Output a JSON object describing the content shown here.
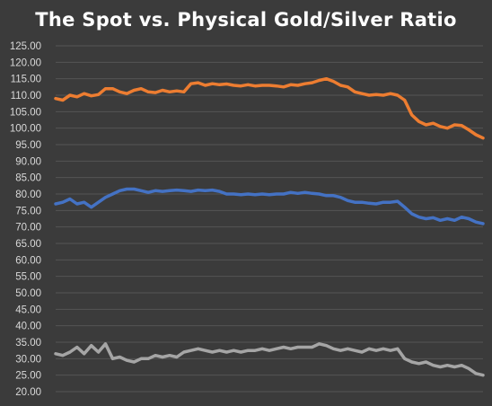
{
  "chart_data": {
    "type": "line",
    "title": "The Spot vs. Physical Gold/Silver Ratio",
    "xlabel": "",
    "ylabel": "",
    "ylim": [
      20,
      125
    ],
    "y_ticks": [
      "20.00",
      "25.00",
      "30.00",
      "35.00",
      "40.00",
      "45.00",
      "50.00",
      "55.00",
      "60.00",
      "65.00",
      "70.00",
      "75.00",
      "80.00",
      "85.00",
      "90.00",
      "95.00",
      "100.00",
      "105.00",
      "110.00",
      "115.00",
      "120.00",
      "125.00"
    ],
    "y_tick_values": [
      20,
      25,
      30,
      35,
      40,
      45,
      50,
      55,
      60,
      65,
      70,
      75,
      80,
      85,
      90,
      95,
      100,
      105,
      110,
      115,
      120,
      125
    ],
    "grid": true,
    "legend": "none",
    "x": [
      0,
      3,
      6,
      9,
      12,
      15,
      18,
      21,
      24,
      27,
      30,
      33,
      36,
      39,
      42,
      45,
      48,
      51,
      54,
      57,
      60,
      63,
      66,
      69,
      72,
      75,
      78,
      81,
      84,
      87,
      90,
      93,
      96,
      99,
      102,
      105,
      108,
      111,
      114,
      117,
      120,
      123,
      126,
      129,
      132,
      135,
      138,
      141,
      144,
      147,
      150,
      153,
      156,
      159,
      162,
      165,
      168,
      171,
      174,
      177,
      180
    ],
    "series": [
      {
        "color": "#ed7d31",
        "values": [
          109,
          108.5,
          110,
          109.5,
          110.5,
          109.8,
          110.2,
          112,
          112,
          111,
          110.5,
          111.5,
          112,
          111,
          110.8,
          111.5,
          111,
          111.3,
          111,
          113.5,
          113.8,
          113,
          113.5,
          113.2,
          113.4,
          113,
          112.8,
          113.2,
          112.8,
          113,
          113,
          112.8,
          112.5,
          113.2,
          113,
          113.5,
          113.8,
          114.5,
          115,
          114.2,
          113,
          112.5,
          111,
          110.5,
          110,
          110.2,
          110,
          110.5,
          110,
          108.5,
          104,
          102,
          101,
          101.5,
          100.5,
          100,
          101,
          100.8,
          99.5,
          98,
          97
        ]
      },
      {
        "color": "#4472c4",
        "values": [
          77,
          77.5,
          78.5,
          77,
          77.5,
          76,
          77.5,
          79,
          80,
          81,
          81.5,
          81.5,
          81,
          80.5,
          81,
          80.8,
          81,
          81.2,
          81,
          80.8,
          81.2,
          81,
          81.2,
          80.8,
          80,
          80,
          79.8,
          80,
          79.8,
          80,
          79.8,
          80,
          80,
          80.5,
          80.2,
          80.5,
          80.2,
          80,
          79.5,
          79.5,
          79,
          78,
          77.5,
          77.5,
          77.2,
          77,
          77.5,
          77.5,
          77.8,
          76,
          74,
          73,
          72.5,
          72.8,
          72,
          72.5,
          72,
          73,
          72.5,
          71.5,
          71
        ]
      },
      {
        "color": "#a5a5a5",
        "values": [
          31.5,
          31,
          32,
          33.5,
          31.5,
          34,
          32,
          34.5,
          30,
          30.5,
          29.5,
          29,
          30,
          30,
          31,
          30.5,
          31,
          30.5,
          32,
          32.5,
          33,
          32.5,
          32,
          32.5,
          32,
          32.5,
          32,
          32.5,
          32.5,
          33,
          32.5,
          33,
          33.5,
          33,
          33.5,
          33.5,
          33.5,
          34.5,
          34,
          33,
          32.5,
          33,
          32.5,
          32,
          33,
          32.5,
          33,
          32.5,
          33,
          30,
          29,
          28.5,
          29,
          28,
          27.5,
          28,
          27.5,
          28,
          27,
          25.5,
          25
        ]
      }
    ]
  }
}
